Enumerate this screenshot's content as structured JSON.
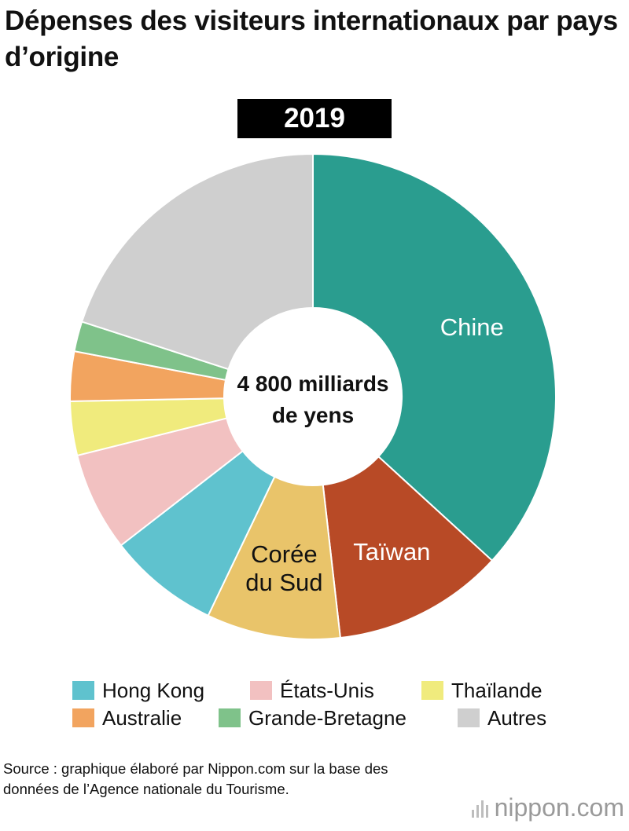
{
  "title": "Dépenses des visiteurs internationaux par pays d’origine",
  "year": "2019",
  "center_label": {
    "line1": "4 800 milliards",
    "line2": "de yens"
  },
  "chart_data": {
    "type": "pie",
    "donut": true,
    "center_text": "4 800 milliards de yens",
    "slices": [
      {
        "label": "Chine",
        "value": 36.8,
        "color": "#2a9d8f",
        "label_color": "#ffffff",
        "on_chart_label": [
          "Chine"
        ]
      },
      {
        "label": "Taïwan",
        "value": 11.4,
        "color": "#b84a26",
        "label_color": "#ffffff",
        "on_chart_label": [
          "Taïwan"
        ]
      },
      {
        "label": "Corée du Sud",
        "value": 8.9,
        "color": "#e9c46a",
        "label_color": "#111111",
        "on_chart_label": [
          "Corée",
          "du Sud"
        ]
      },
      {
        "label": "Hong Kong",
        "value": 7.4,
        "color": "#5fc2ce",
        "label_color": "#111111",
        "on_chart_label": []
      },
      {
        "label": "États-Unis",
        "value": 6.6,
        "color": "#f2c1c1",
        "label_color": "#111111",
        "on_chart_label": []
      },
      {
        "label": "Thaïlande",
        "value": 3.6,
        "color": "#f0eb7d",
        "label_color": "#111111",
        "on_chart_label": []
      },
      {
        "label": "Australie",
        "value": 3.3,
        "color": "#f2a45f",
        "label_color": "#111111",
        "on_chart_label": []
      },
      {
        "label": "Grande-Bretagne",
        "value": 2.0,
        "color": "#7fc28a",
        "label_color": "#111111",
        "on_chart_label": []
      },
      {
        "label": "Autres",
        "value": 20.0,
        "color": "#cfcfcf",
        "label_color": "#111111",
        "on_chart_label": []
      }
    ],
    "legend_placement": "bottom"
  },
  "legend": [
    {
      "label": "Hong Kong",
      "color": "#5fc2ce"
    },
    {
      "label": "États-Unis",
      "color": "#f2c1c1"
    },
    {
      "label": "Thaïlande",
      "color": "#f0eb7d"
    },
    {
      "label": "Australie",
      "color": "#f2a45f"
    },
    {
      "label": "Grande-Bretagne",
      "color": "#7fc28a"
    },
    {
      "label": "Autres",
      "color": "#cfcfcf"
    }
  ],
  "source": "Source : graphique élaboré par Nippon.com sur la base des données de l’Agence nationale du Tourisme.",
  "brand": {
    "name": "nippon",
    "suffix": ".com"
  }
}
